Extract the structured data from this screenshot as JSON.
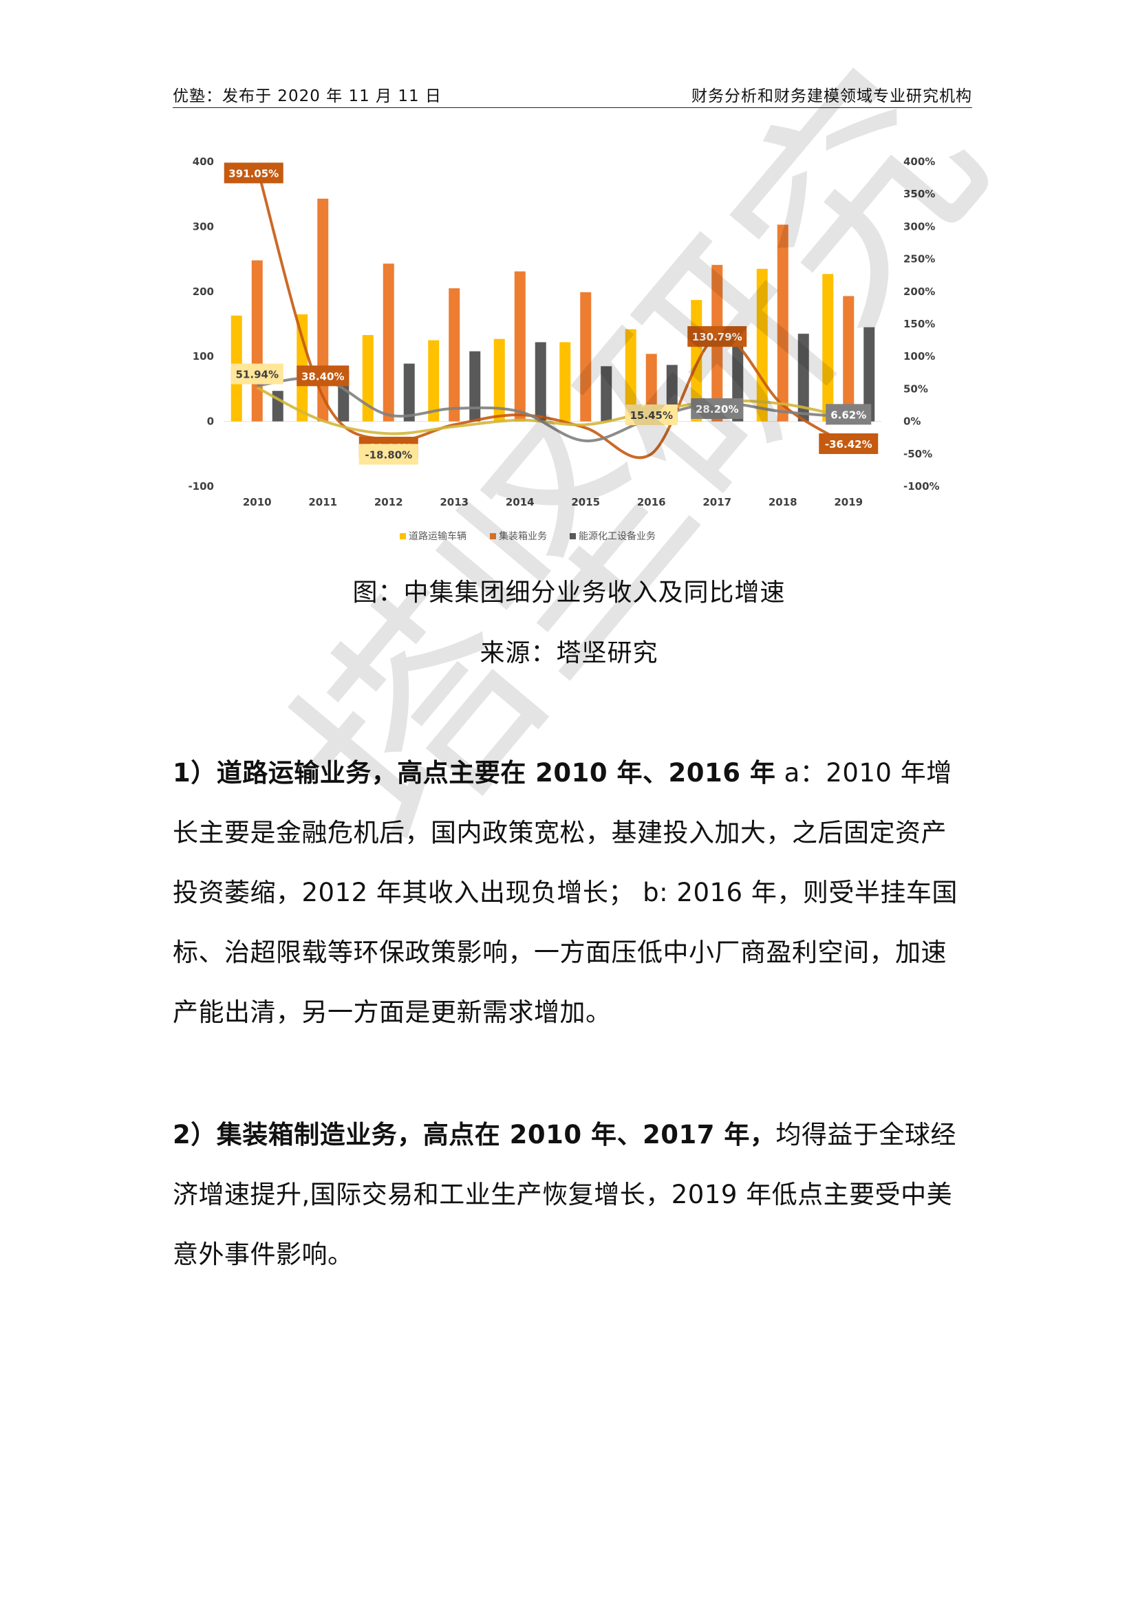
{
  "header": {
    "left": "优塾：发布于 2020 年 11 月 11 日",
    "right": "财务分析和财务建模领域专业研究机构"
  },
  "figure": {
    "caption": "图：中集集团细分业务收入及同比增速",
    "source": "来源：塔坚研究"
  },
  "paragraph1": {
    "bold": "1）道路运输业务，高点主要在 2010 年、2016 年",
    "text": " a：2010 年增长主要是金融危机后，国内政策宽松，基建投入加大，之后固定资产投资萎缩，2012 年其收入出现负增长； b: 2016 年，则受半挂车国标、治超限载等环保政策影响，一方面压低中小厂商盈利空间，加速产能出清，另一方面是更新需求增加。"
  },
  "paragraph2": {
    "bold": "2）集装箱制造业务，高点在 2010 年、2017 年，",
    "text": "均得益于全球经济增速提升,国际交易和工业生产恢复增长，2019 年低点主要受中美意外事件影响。"
  },
  "watermark": "塔坚研究",
  "chart_data": {
    "type": "bar",
    "categories": [
      "2010",
      "2011",
      "2012",
      "2013",
      "2014",
      "2015",
      "2016",
      "2017",
      "2018",
      "2019"
    ],
    "series": [
      {
        "name": "道路运输车辆",
        "color": "#FFC000",
        "values": [
          163,
          165,
          133,
          125,
          127,
          122,
          142,
          187,
          235,
          227
        ]
      },
      {
        "name": "集装箱业务",
        "color": "#ED7D31",
        "values": [
          248,
          343,
          243,
          205,
          231,
          199,
          104,
          241,
          303,
          193
        ]
      },
      {
        "name": "能源化工设备业务",
        "color": "#595959",
        "values": [
          47,
          79,
          89,
          108,
          122,
          85,
          87,
          117,
          135,
          145
        ]
      }
    ],
    "growth_series": [
      {
        "name": "集装箱业务",
        "color": "#C55A11",
        "values": [
          391.05,
          38.4,
          -28.94,
          -5,
          10,
          -10,
          -50,
          130.79,
          25,
          -36.42
        ]
      },
      {
        "name": "道路运输车辆",
        "color": "#D4B63A",
        "values": [
          51.94,
          1,
          -18.8,
          -8,
          2,
          -5,
          15.45,
          31,
          27,
          6
        ]
      },
      {
        "name": "能源化工设备业务",
        "color": "#7F7F7F",
        "values": [
          55,
          65,
          10,
          20,
          15,
          -30,
          5,
          28.2,
          15,
          6.62
        ]
      }
    ],
    "annotations": [
      {
        "text": "391.05%",
        "category": "2010",
        "value": 391.05,
        "style": "dark-orange"
      },
      {
        "text": "51.94%",
        "category": "2010",
        "value": 51.94,
        "style": "yellow"
      },
      {
        "text": "38.40%",
        "category": "2011",
        "value": 38.4,
        "style": "dark-orange"
      },
      {
        "text": "-28.94%",
        "category": "2012",
        "value": -28.94,
        "style": "dark-orange"
      },
      {
        "text": "-18.80%",
        "category": "2012",
        "value": -18.8,
        "style": "yellow"
      },
      {
        "text": "15.45%",
        "category": "2016",
        "value": 15.45,
        "style": "yellow"
      },
      {
        "text": "130.79%",
        "category": "2017",
        "value": 130.79,
        "style": "dark-orange"
      },
      {
        "text": "28.20%",
        "category": "2017",
        "value": 28.2,
        "style": "grey"
      },
      {
        "text": "6.62%",
        "category": "2019",
        "value": 6.62,
        "style": "grey"
      },
      {
        "text": "-36.42%",
        "category": "2019",
        "value": -36.42,
        "style": "dark-orange"
      }
    ],
    "y_left": {
      "min": -100,
      "max": 400,
      "ticks": [
        "-100",
        "0",
        "100",
        "200",
        "300",
        "400"
      ]
    },
    "y_right": {
      "min": -100,
      "max": 400,
      "ticks": [
        "-100%",
        "-50%",
        "0%",
        "50%",
        "100%",
        "150%",
        "200%",
        "250%",
        "300%",
        "350%",
        "400%"
      ]
    },
    "legend_position": "bottom",
    "grid": false
  }
}
